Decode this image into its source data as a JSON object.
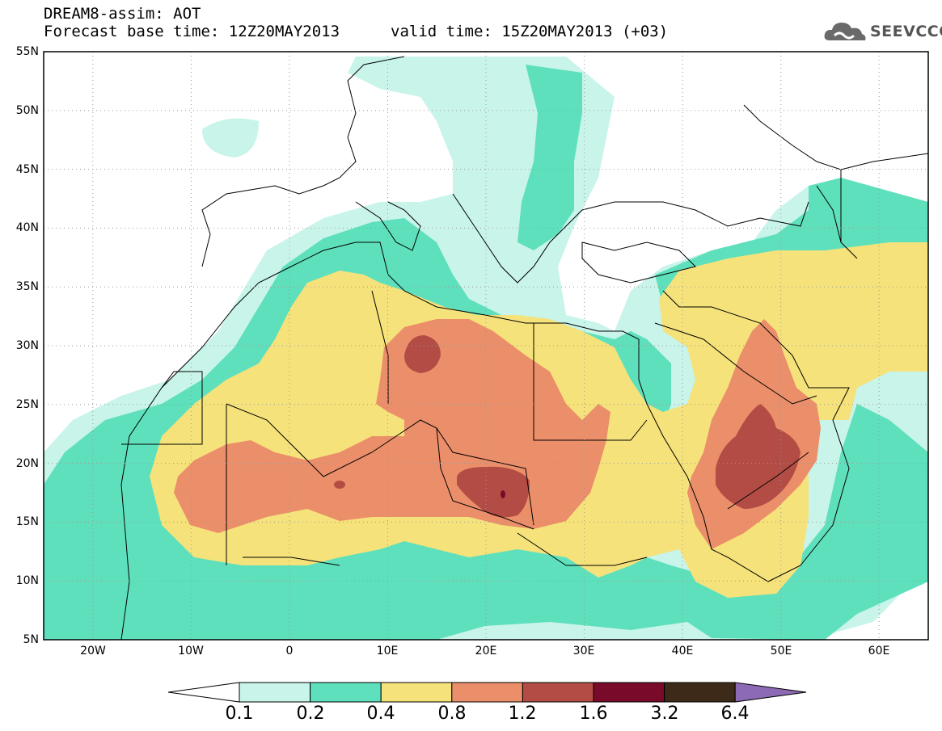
{
  "header": {
    "line1": "DREAM8-assim: AOT",
    "line2_base": "Forecast base time: 12Z20MAY2013",
    "line2_valid": "valid time: 15Z20MAY2013 (+03)"
  },
  "logo": {
    "text": "SEEVCCC",
    "icon": "cloud-icon"
  },
  "axes": {
    "lat_labels": [
      "55N",
      "50N",
      "45N",
      "40N",
      "35N",
      "30N",
      "25N",
      "20N",
      "15N",
      "10N",
      "5N"
    ],
    "lon_labels": [
      "20W",
      "10W",
      "0",
      "10E",
      "20E",
      "30E",
      "40E",
      "50E",
      "60E"
    ],
    "lat_range": [
      5,
      55
    ],
    "lon_range": [
      -25,
      65
    ],
    "grid": "dotted"
  },
  "colorbar": {
    "levels": [
      "0.1",
      "0.2",
      "0.4",
      "0.8",
      "1.2",
      "1.6",
      "3.2",
      "6.4"
    ],
    "colors": [
      "#ffffff",
      "#c8f4ea",
      "#5fe0bd",
      "#f6e27a",
      "#eb8e6a",
      "#b24c44",
      "#7a0a2a",
      "#3d2a18",
      "#8c6ab4"
    ]
  },
  "palette": {
    "c01": "#c8f4ea",
    "c02": "#5fe0bd",
    "c04": "#f6e27a",
    "c08": "#eb8e6a",
    "c12": "#b24c44",
    "c16": "#7a0a2a"
  }
}
